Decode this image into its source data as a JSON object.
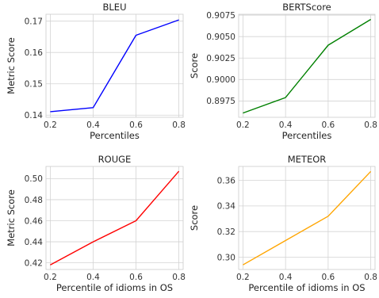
{
  "chart_data": [
    {
      "type": "line",
      "title": "BLEU",
      "xlabel": "Percentiles",
      "ylabel": "Metric Score",
      "x": [
        0.2,
        0.4,
        0.6,
        0.8
      ],
      "series": [
        {
          "values": [
            0.1411,
            0.1424,
            0.1655,
            0.1704
          ],
          "color": "#0000ff"
        }
      ],
      "xlim": [
        0.18,
        0.82
      ],
      "ylim": [
        0.1393,
        0.1722
      ],
      "xticks": [
        "0.2",
        "0.4",
        "0.6",
        "0.8"
      ],
      "yticks": [
        "0.14",
        "0.15",
        "0.16",
        "0.17"
      ],
      "xtick_values": [
        0.2,
        0.4,
        0.6,
        0.8
      ],
      "ytick_values": [
        0.14,
        0.15,
        0.16,
        0.17
      ],
      "grid": true
    },
    {
      "type": "line",
      "title": "BERTScore",
      "xlabel": "Percentiles",
      "ylabel": "Score",
      "x": [
        0.2,
        0.4,
        0.6,
        0.8
      ],
      "series": [
        {
          "values": [
            0.8961,
            0.8979,
            0.904,
            0.907
          ],
          "color": "#008000"
        }
      ],
      "xlim": [
        0.18,
        0.82
      ],
      "ylim": [
        0.8956,
        0.9076
      ],
      "xticks": [
        "0.2",
        "0.4",
        "0.6",
        "0.8"
      ],
      "yticks": [
        "0.8975",
        "0.9000",
        "0.9025",
        "0.9050",
        "0.9075"
      ],
      "xtick_values": [
        0.2,
        0.4,
        0.6,
        0.8
      ],
      "ytick_values": [
        0.8975,
        0.9,
        0.9025,
        0.905,
        0.9075
      ],
      "grid": true
    },
    {
      "type": "line",
      "title": "ROUGE",
      "xlabel": "Percentile of idioms in OS",
      "ylabel": "Metric Score",
      "x": [
        0.2,
        0.4,
        0.6,
        0.8
      ],
      "series": [
        {
          "values": [
            0.418,
            0.44,
            0.46,
            0.507
          ],
          "color": "#ff0000"
        }
      ],
      "xlim": [
        0.18,
        0.82
      ],
      "ylim": [
        0.4137,
        0.5116
      ],
      "xticks": [
        "0.2",
        "0.4",
        "0.6",
        "0.8"
      ],
      "yticks": [
        "0.42",
        "0.44",
        "0.46",
        "0.48",
        "0.50"
      ],
      "xtick_values": [
        0.2,
        0.4,
        0.6,
        0.8
      ],
      "ytick_values": [
        0.42,
        0.44,
        0.46,
        0.48,
        0.5
      ],
      "grid": true
    },
    {
      "type": "line",
      "title": "METEOR",
      "xlabel": "Percentile of idioms in OS",
      "ylabel": "Score",
      "x": [
        0.2,
        0.4,
        0.6,
        0.8
      ],
      "series": [
        {
          "values": [
            0.294,
            0.313,
            0.332,
            0.367
          ],
          "color": "#ffa500"
        }
      ],
      "xlim": [
        0.18,
        0.82
      ],
      "ylim": [
        0.2904,
        0.3709
      ],
      "xticks": [
        "0.2",
        "0.4",
        "0.6",
        "0.8"
      ],
      "yticks": [
        "0.30",
        "0.32",
        "0.34",
        "0.36"
      ],
      "xtick_values": [
        0.2,
        0.4,
        0.6,
        0.8
      ],
      "ytick_values": [
        0.3,
        0.32,
        0.34,
        0.36
      ],
      "grid": true
    }
  ]
}
